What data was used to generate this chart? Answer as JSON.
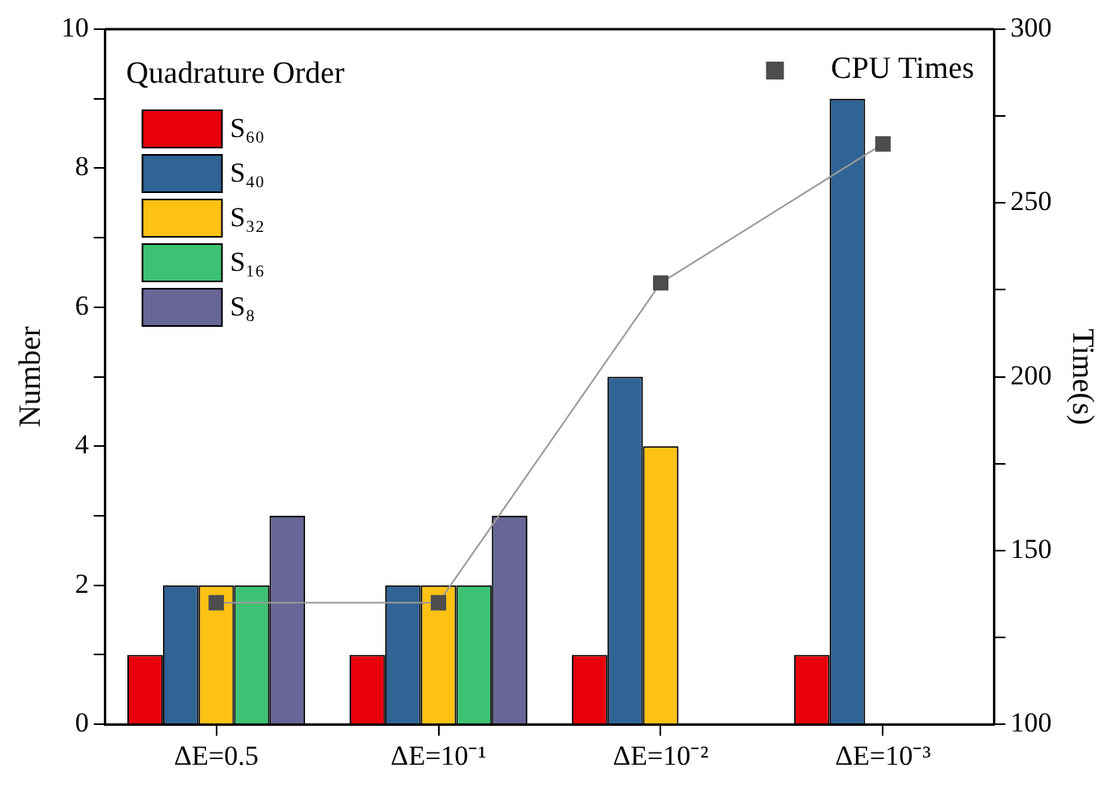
{
  "chart_data": {
    "type": "bar",
    "xlabel": null,
    "ylabel": "Number",
    "y2label": "Time(s)",
    "legend_title": "Quadrature Order",
    "legend": "top left",
    "categories": [
      "ΔE=0.5",
      "ΔE=10⁻¹",
      "ΔE=10⁻²",
      "ΔE=10⁻³"
    ],
    "series": [
      {
        "name": "S₆₀",
        "color": "#e8000b",
        "values": [
          1,
          1,
          1,
          1
        ]
      },
      {
        "name": "S₄₀",
        "color": "#306495",
        "values": [
          2,
          2,
          5,
          9
        ]
      },
      {
        "name": "S₃₂",
        "color": "#fdc214",
        "values": [
          2,
          2,
          4,
          null
        ]
      },
      {
        "name": "S₁₆",
        "color": "#3cc272",
        "values": [
          2,
          2,
          null,
          null
        ]
      },
      {
        "name": "S₈",
        "color": "#686696",
        "values": [
          3,
          3,
          null,
          null
        ]
      },
      {
        "name": "CPU Times",
        "type": "line",
        "axis": "y2",
        "color": "#4d4d4d",
        "marker": "square",
        "values": [
          135,
          135,
          227,
          267
        ]
      }
    ],
    "ylim": [
      0,
      10
    ],
    "yticks": [
      0,
      {
        "value": 1,
        "label": null
      },
      2,
      {
        "value": 3,
        "label": null
      },
      4,
      {
        "value": 5,
        "label": null
      },
      6,
      {
        "value": 7,
        "label": null
      },
      8,
      {
        "value": 9,
        "label": null
      },
      10
    ],
    "y2lim": [
      100,
      300
    ],
    "y2ticks": [
      100,
      {
        "value": 125,
        "label": null
      },
      150,
      {
        "value": 175,
        "label": null
      },
      200,
      {
        "value": 225,
        "label": null
      },
      250,
      {
        "value": 275,
        "label": null
      },
      300
    ],
    "grid": false
  }
}
